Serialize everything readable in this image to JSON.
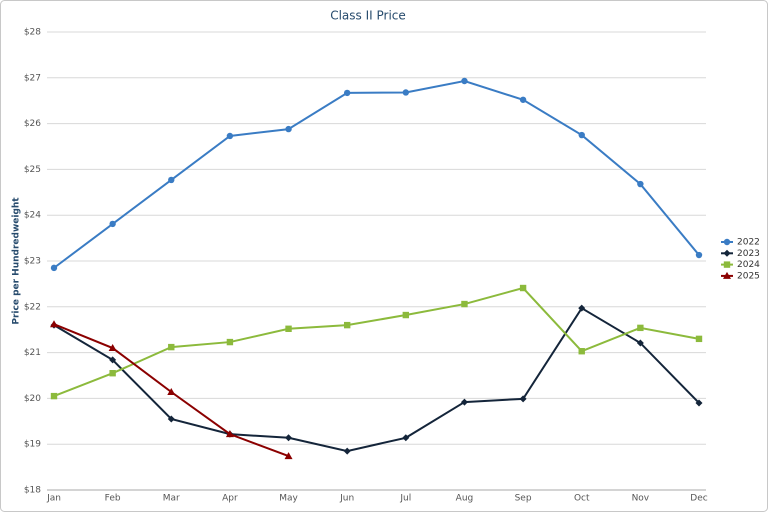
{
  "chart_data": {
    "type": "line",
    "title": "Class II Price",
    "y_label": "Price per Hundredweight",
    "categories": [
      "Jan",
      "Feb",
      "Mar",
      "Apr",
      "May",
      "Jun",
      "Jul",
      "Aug",
      "Sep",
      "Oct",
      "Nov",
      "Dec"
    ],
    "series": [
      {
        "name": "2022",
        "color": "#3a7cc4",
        "marker": "circle",
        "values": [
          22.85,
          23.81,
          24.77,
          25.73,
          25.88,
          26.67,
          26.68,
          26.93,
          26.52,
          25.75,
          24.68,
          23.13
        ]
      },
      {
        "name": "2023",
        "color": "#14253a",
        "marker": "diamond",
        "values": [
          21.6,
          20.84,
          19.55,
          19.22,
          19.14,
          18.85,
          19.14,
          19.92,
          19.99,
          21.97,
          21.21,
          19.9
        ]
      },
      {
        "name": "2024",
        "color": "#8cba3c",
        "marker": "square",
        "values": [
          20.05,
          20.55,
          21.12,
          21.23,
          21.52,
          21.6,
          21.82,
          22.06,
          22.41,
          21.03,
          21.54,
          21.3
        ]
      },
      {
        "name": "2025",
        "color": "#8b0000",
        "marker": "triangle",
        "values": [
          21.62,
          21.1,
          20.14,
          19.22,
          18.74,
          null,
          null,
          null,
          null,
          null,
          null,
          null
        ]
      }
    ],
    "ylim": [
      18,
      28
    ],
    "yticks": [
      {
        "value": 18,
        "label": "$18"
      },
      {
        "value": 19,
        "label": "$19"
      },
      {
        "value": 20,
        "label": "$20"
      },
      {
        "value": 21,
        "label": "$21"
      },
      {
        "value": 22,
        "label": "$22"
      },
      {
        "value": 23,
        "label": "$23"
      },
      {
        "value": 24,
        "label": "$24"
      },
      {
        "value": 25,
        "label": "$25"
      },
      {
        "value": 26,
        "label": "$26"
      },
      {
        "value": 27,
        "label": "$27"
      },
      {
        "value": 28,
        "label": "$28"
      }
    ],
    "grid": true,
    "legend": "right"
  }
}
